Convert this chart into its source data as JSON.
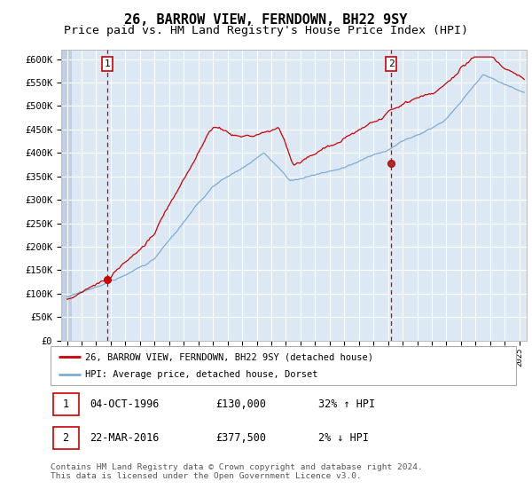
{
  "title": "26, BARROW VIEW, FERNDOWN, BH22 9SY",
  "subtitle": "Price paid vs. HM Land Registry's House Price Index (HPI)",
  "ylim": [
    0,
    620000
  ],
  "xlim_start": 1993.6,
  "xlim_end": 2025.5,
  "background_color": "#dce9f5",
  "grid_color": "#ffffff",
  "sale1_date": 1996.75,
  "sale1_price": 130000,
  "sale1_label": "1",
  "sale2_date": 2016.22,
  "sale2_price": 377500,
  "sale2_label": "2",
  "legend_line1": "26, BARROW VIEW, FERNDOWN, BH22 9SY (detached house)",
  "legend_line2": "HPI: Average price, detached house, Dorset",
  "footer": "Contains HM Land Registry data © Crown copyright and database right 2024.\nThis data is licensed under the Open Government Licence v3.0.",
  "red_line_color": "#cc0000",
  "blue_line_color": "#7aadd4",
  "title_fontsize": 11,
  "subtitle_fontsize": 9.5
}
